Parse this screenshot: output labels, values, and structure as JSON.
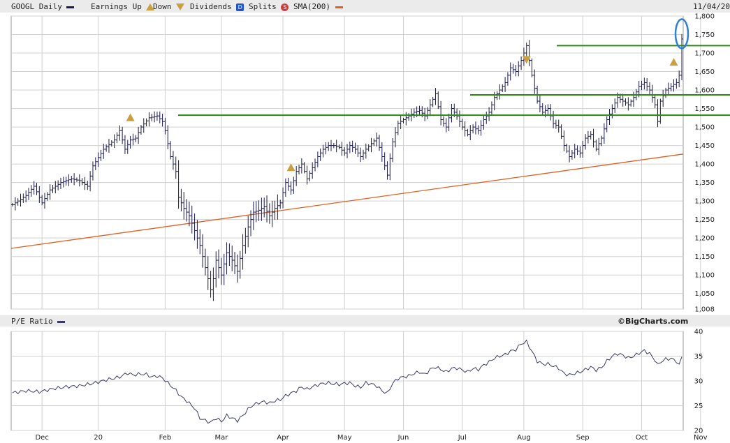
{
  "legend": {
    "ticker_label": "GOOGL Daily",
    "earnings_label": "Earnings Up",
    "down_label": "Down",
    "dividends_label": "Dividends",
    "dividends_badge": "D",
    "splits_label": "Splits",
    "splits_badge": "S",
    "sma_label": "SMA(200)",
    "date_label": "11/04/20"
  },
  "pe_panel": {
    "title": "P/E Ratio",
    "credit": "©BigCharts.com"
  },
  "colors": {
    "price_bars": "#1a1a4a",
    "sma": "#e06020",
    "resistance_lines": "#2a8a10",
    "highlight": "#2f7fd8",
    "grid": "#d0d0d0",
    "earnings_marker": "#c8a040",
    "pe_line": "#3a3a6a",
    "dividend_badge": "#2255cc",
    "split_badge": "#c84040"
  },
  "chart_data": [
    {
      "type": "ohlc",
      "series_name": "GOOGL Daily",
      "y_ticks": [
        1008,
        1050,
        1100,
        1150,
        1200,
        1250,
        1300,
        1350,
        1400,
        1450,
        1500,
        1550,
        1600,
        1650,
        1700,
        1750,
        1800
      ],
      "ylim": [
        1008,
        1800
      ],
      "x_tick_labels": [
        "Dec",
        "20",
        "Feb",
        "Mar",
        "Apr",
        "May",
        "Jun",
        "Jul",
        "Aug",
        "Sep",
        "Oct",
        "Nov"
      ],
      "x_tick_index": [
        11,
        32,
        57,
        78,
        101,
        124,
        146,
        168,
        191,
        213,
        235,
        257
      ],
      "grid": true,
      "close_waypoints": [
        [
          0,
          1290
        ],
        [
          5,
          1315
        ],
        [
          8,
          1340
        ],
        [
          11,
          1295
        ],
        [
          14,
          1330
        ],
        [
          18,
          1350
        ],
        [
          22,
          1360
        ],
        [
          25,
          1355
        ],
        [
          28,
          1340
        ],
        [
          30,
          1395
        ],
        [
          34,
          1440
        ],
        [
          38,
          1465
        ],
        [
          40,
          1490
        ],
        [
          42,
          1440
        ],
        [
          44,
          1465
        ],
        [
          46,
          1470
        ],
        [
          48,
          1500
        ],
        [
          51,
          1525
        ],
        [
          54,
          1530
        ],
        [
          56,
          1515
        ],
        [
          57,
          1490
        ],
        [
          59,
          1420
        ],
        [
          61,
          1380
        ],
        [
          62,
          1310
        ],
        [
          64,
          1280
        ],
        [
          66,
          1260
        ],
        [
          68,
          1220
        ],
        [
          70,
          1180
        ],
        [
          72,
          1120
        ],
        [
          74,
          1060
        ],
        [
          75,
          1090
        ],
        [
          76,
          1140
        ],
        [
          78,
          1100
        ],
        [
          80,
          1160
        ],
        [
          82,
          1140
        ],
        [
          84,
          1110
        ],
        [
          86,
          1180
        ],
        [
          88,
          1230
        ],
        [
          90,
          1270
        ],
        [
          92,
          1275
        ],
        [
          94,
          1285
        ],
        [
          96,
          1260
        ],
        [
          98,
          1280
        ],
        [
          100,
          1295
        ],
        [
          102,
          1350
        ],
        [
          104,
          1330
        ],
        [
          106,
          1380
        ],
        [
          108,
          1400
        ],
        [
          110,
          1360
        ],
        [
          112,
          1390
        ],
        [
          114,
          1420
        ],
        [
          116,
          1440
        ],
        [
          118,
          1450
        ],
        [
          120,
          1450
        ],
        [
          122,
          1445
        ],
        [
          124,
          1430
        ],
        [
          126,
          1450
        ],
        [
          128,
          1440
        ],
        [
          130,
          1420
        ],
        [
          132,
          1440
        ],
        [
          134,
          1455
        ],
        [
          136,
          1470
        ],
        [
          138,
          1420
        ],
        [
          140,
          1370
        ],
        [
          142,
          1460
        ],
        [
          144,
          1510
        ],
        [
          146,
          1520
        ],
        [
          148,
          1530
        ],
        [
          150,
          1540
        ],
        [
          152,
          1545
        ],
        [
          154,
          1530
        ],
        [
          156,
          1560
        ],
        [
          158,
          1590
        ],
        [
          160,
          1520
        ],
        [
          162,
          1500
        ],
        [
          164,
          1550
        ],
        [
          166,
          1530
        ],
        [
          168,
          1500
        ],
        [
          170,
          1480
        ],
        [
          172,
          1500
        ],
        [
          174,
          1490
        ],
        [
          176,
          1520
        ],
        [
          178,
          1540
        ],
        [
          180,
          1580
        ],
        [
          182,
          1600
        ],
        [
          184,
          1620
        ],
        [
          186,
          1660
        ],
        [
          188,
          1650
        ],
        [
          190,
          1680
        ],
        [
          192,
          1720
        ],
        [
          194,
          1640
        ],
        [
          196,
          1570
        ],
        [
          198,
          1540
        ],
        [
          200,
          1550
        ],
        [
          202,
          1510
        ],
        [
          204,
          1500
        ],
        [
          206,
          1450
        ],
        [
          208,
          1420
        ],
        [
          210,
          1440
        ],
        [
          212,
          1430
        ],
        [
          214,
          1470
        ],
        [
          216,
          1480
        ],
        [
          218,
          1440
        ],
        [
          220,
          1470
        ],
        [
          222,
          1520
        ],
        [
          224,
          1550
        ],
        [
          226,
          1580
        ],
        [
          228,
          1570
        ],
        [
          230,
          1560
        ],
        [
          232,
          1580
        ],
        [
          234,
          1610
        ],
        [
          236,
          1620
        ],
        [
          238,
          1600
        ],
        [
          240,
          1560
        ],
        [
          241,
          1515
        ],
        [
          242,
          1570
        ],
        [
          244,
          1600
        ],
        [
          246,
          1610
        ],
        [
          248,
          1620
        ],
        [
          249,
          1640
        ],
        [
          250,
          1738
        ]
      ],
      "sma_200": {
        "start": 1172,
        "end": 1427
      },
      "resistance_lines": [
        1532,
        1587,
        1720
      ],
      "earnings_markers": [
        {
          "index": 44,
          "direction": "up"
        },
        {
          "index": 104,
          "direction": "up"
        },
        {
          "index": 192,
          "direction": "down"
        },
        {
          "index": 247,
          "direction": "up"
        }
      ]
    },
    {
      "type": "line",
      "series_name": "P/E Ratio",
      "y_ticks": [
        20,
        25,
        30,
        35,
        40
      ],
      "ylim": [
        20,
        40
      ],
      "x_tick_labels": [
        "Dec",
        "20",
        "Feb",
        "Mar",
        "Apr",
        "May",
        "Jun",
        "Jul",
        "Aug",
        "Sep",
        "Oct",
        "Nov"
      ],
      "grid": true,
      "waypoints": [
        [
          0,
          27.6
        ],
        [
          5,
          28
        ],
        [
          10,
          27.8
        ],
        [
          15,
          28.4
        ],
        [
          20,
          28.8
        ],
        [
          25,
          29
        ],
        [
          30,
          29.5
        ],
        [
          35,
          30.2
        ],
        [
          40,
          30.8
        ],
        [
          43,
          31.6
        ],
        [
          45,
          31.2
        ],
        [
          48,
          31.4
        ],
        [
          50,
          31.3
        ],
        [
          52,
          30.8
        ],
        [
          54,
          31.0
        ],
        [
          56,
          30.6
        ],
        [
          58,
          29.6
        ],
        [
          61,
          28.1
        ],
        [
          63,
          26.8
        ],
        [
          65,
          26.0
        ],
        [
          68,
          24.5
        ],
        [
          70,
          22.5
        ],
        [
          72,
          22.0
        ],
        [
          74,
          21.6
        ],
        [
          76,
          22.5
        ],
        [
          78,
          21.8
        ],
        [
          80,
          23.0
        ],
        [
          82,
          22.5
        ],
        [
          84,
          22.0
        ],
        [
          86,
          23.0
        ],
        [
          88,
          24.3
        ],
        [
          90,
          25.2
        ],
        [
          92,
          25.6
        ],
        [
          94,
          25.8
        ],
        [
          96,
          25.5
        ],
        [
          98,
          26.0
        ],
        [
          100,
          26.2
        ],
        [
          102,
          27.0
        ],
        [
          104,
          27.5
        ],
        [
          106,
          28.0
        ],
        [
          108,
          28.8
        ],
        [
          110,
          28.3
        ],
        [
          112,
          28.8
        ],
        [
          114,
          29.2
        ],
        [
          116,
          29.5
        ],
        [
          118,
          29.6
        ],
        [
          120,
          29.4
        ],
        [
          122,
          29.3
        ],
        [
          124,
          29.5
        ],
        [
          126,
          29.6
        ],
        [
          128,
          29.0
        ],
        [
          130,
          28.7
        ],
        [
          132,
          29.6
        ],
        [
          134,
          29.4
        ],
        [
          136,
          29.0
        ],
        [
          138,
          28.0
        ],
        [
          140,
          27.5
        ],
        [
          142,
          29.5
        ],
        [
          144,
          30.5
        ],
        [
          146,
          30.8
        ],
        [
          148,
          31.0
        ],
        [
          150,
          31.5
        ],
        [
          152,
          31.8
        ],
        [
          154,
          31.3
        ],
        [
          156,
          32.3
        ],
        [
          158,
          32.8
        ],
        [
          160,
          32.3
        ],
        [
          162,
          31.8
        ],
        [
          164,
          32.5
        ],
        [
          166,
          32.6
        ],
        [
          168,
          32.2
        ],
        [
          170,
          31.8
        ],
        [
          172,
          32.5
        ],
        [
          174,
          32.3
        ],
        [
          176,
          33.2
        ],
        [
          178,
          33.8
        ],
        [
          180,
          34.6
        ],
        [
          182,
          35.0
        ],
        [
          184,
          35.3
        ],
        [
          186,
          36.0
        ],
        [
          188,
          36.3
        ],
        [
          190,
          37.5
        ],
        [
          192,
          37.9
        ],
        [
          194,
          36.0
        ],
        [
          196,
          34.0
        ],
        [
          198,
          33.4
        ],
        [
          200,
          33.4
        ],
        [
          202,
          33.0
        ],
        [
          204,
          32.6
        ],
        [
          206,
          31.5
        ],
        [
          208,
          31.2
        ],
        [
          210,
          31.5
        ],
        [
          212,
          31.8
        ],
        [
          214,
          32.3
        ],
        [
          216,
          32.8
        ],
        [
          218,
          32.2
        ],
        [
          220,
          32.7
        ],
        [
          222,
          34.0
        ],
        [
          224,
          35.0
        ],
        [
          226,
          35.5
        ],
        [
          228,
          35.2
        ],
        [
          230,
          34.6
        ],
        [
          232,
          35.0
        ],
        [
          234,
          35.6
        ],
        [
          236,
          36.1
        ],
        [
          238,
          35.5
        ],
        [
          240,
          34.2
        ],
        [
          241,
          33.2
        ],
        [
          242,
          33.8
        ],
        [
          244,
          34.4
        ],
        [
          246,
          34.5
        ],
        [
          248,
          34.0
        ],
        [
          249,
          33.1
        ],
        [
          250,
          34.9
        ]
      ]
    }
  ]
}
